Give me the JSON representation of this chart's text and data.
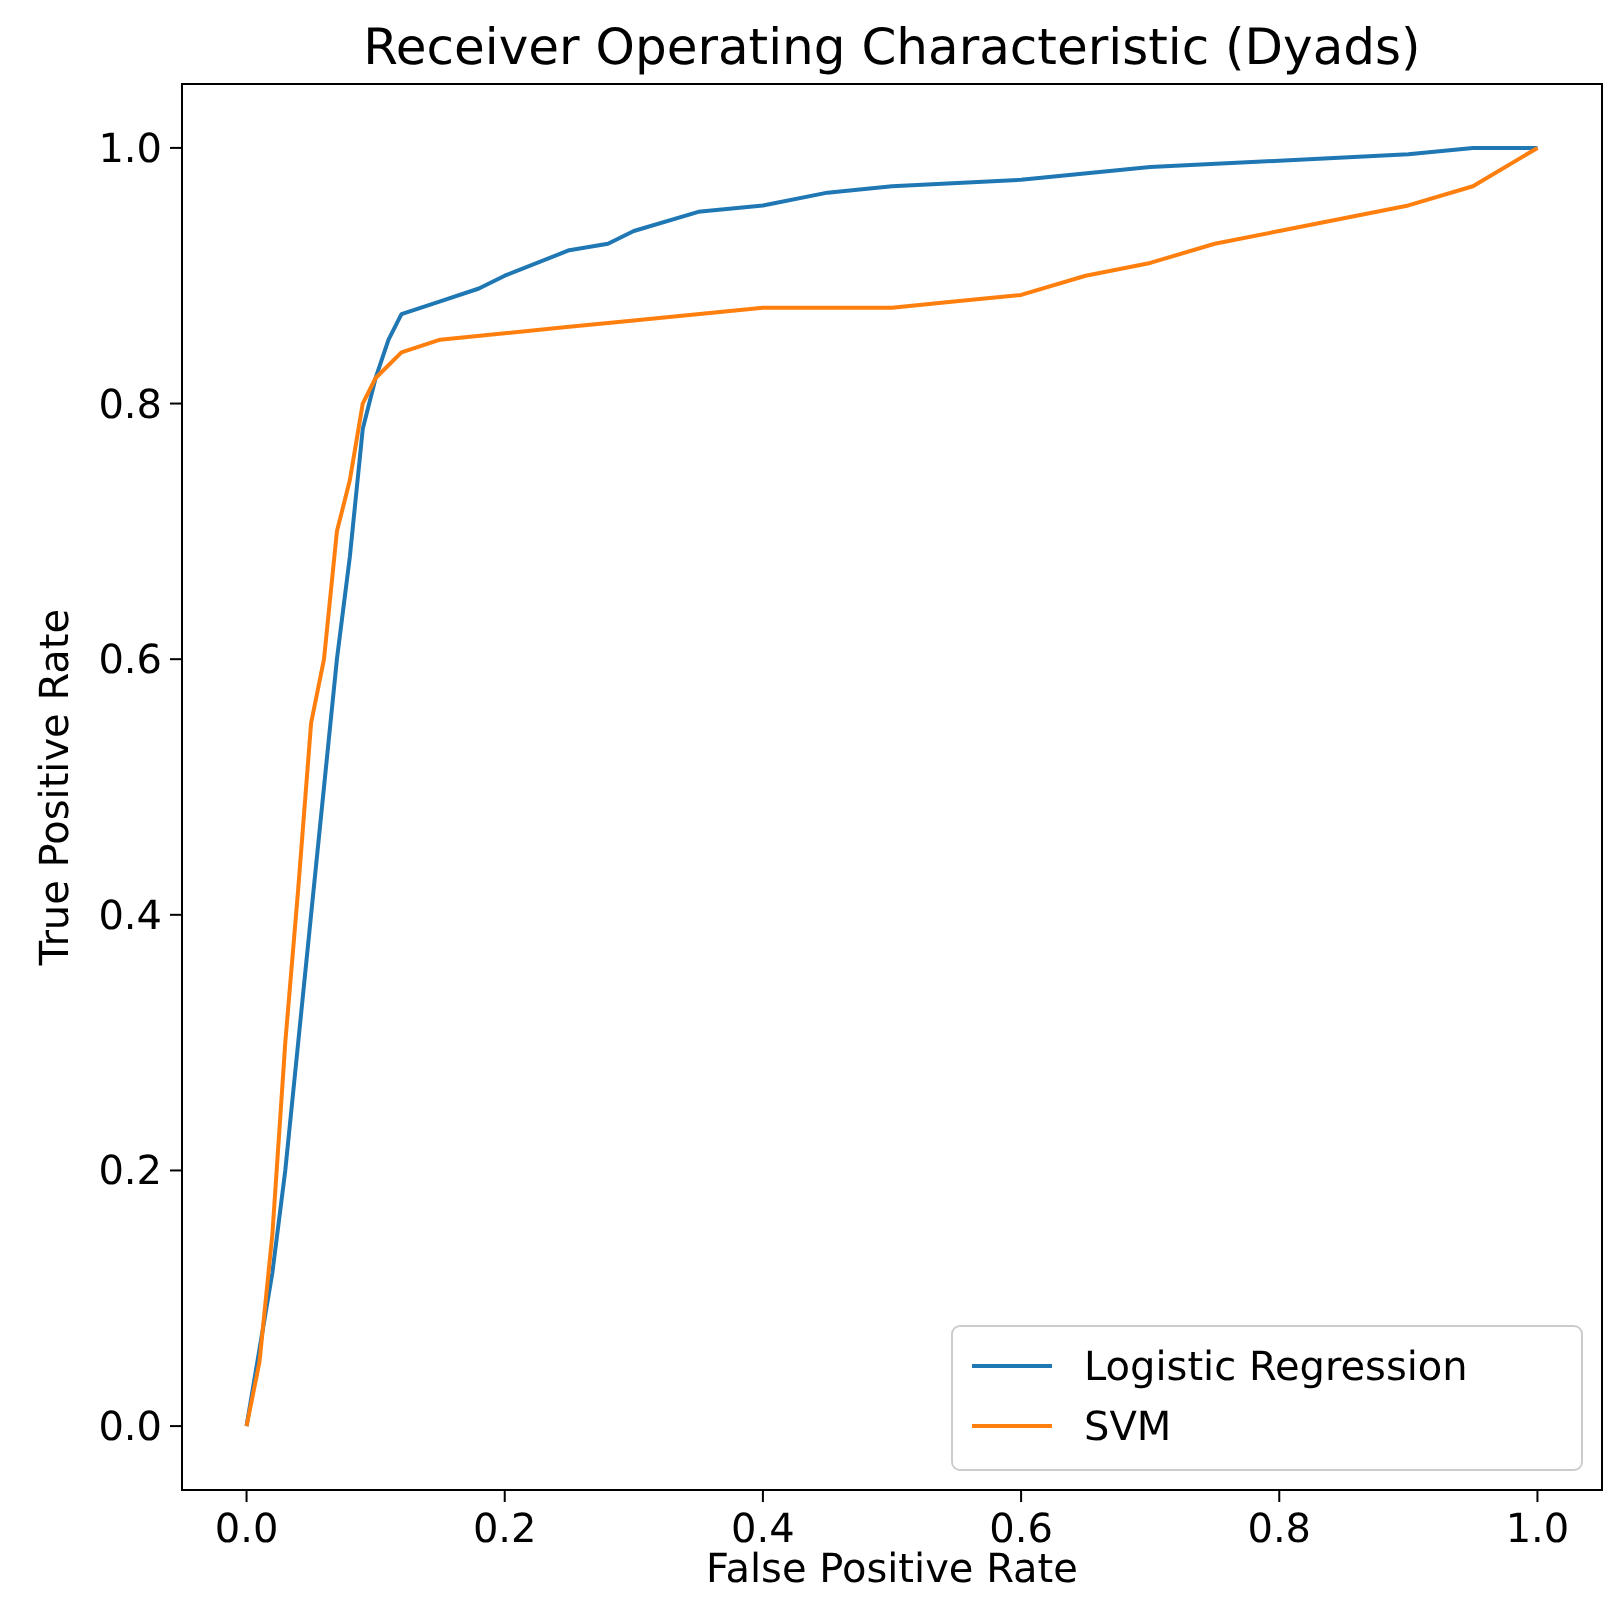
{
  "chart_data": {
    "type": "line",
    "title": "Receiver Operating Characteristic (Dyads)",
    "xlabel": "False Positive Rate",
    "ylabel": "True Positive Rate",
    "xlim": [
      -0.05,
      1.05
    ],
    "ylim": [
      -0.05,
      1.05
    ],
    "xticks": [
      {
        "value": 0,
        "label": "0.0"
      },
      {
        "value": 0.2,
        "label": "0.2"
      },
      {
        "value": 0.4,
        "label": "0.4"
      },
      {
        "value": 0.6,
        "label": "0.6"
      },
      {
        "value": 0.8,
        "label": "0.8"
      },
      {
        "value": 1,
        "label": "1.0"
      }
    ],
    "yticks": [
      {
        "value": 0,
        "label": "0.0"
      },
      {
        "value": 0.2,
        "label": "0.2"
      },
      {
        "value": 0.4,
        "label": "0.4"
      },
      {
        "value": 0.6,
        "label": "0.6"
      },
      {
        "value": 0.8,
        "label": "0.8"
      },
      {
        "value": 1,
        "label": "1.0"
      }
    ],
    "grid": false,
    "legend": "bottom right",
    "line_style": "solid",
    "marker": "none",
    "series": [
      {
        "name": "Logistic Regression",
        "color": "#1f77b4",
        "x": [
          0,
          0.01,
          0.02,
          0.03,
          0.04,
          0.05,
          0.06,
          0.07,
          0.08,
          0.09,
          0.1,
          0.11,
          0.12,
          0.15,
          0.18,
          0.2,
          0.25,
          0.28,
          0.3,
          0.35,
          0.4,
          0.45,
          0.5,
          0.6,
          0.7,
          0.8,
          0.9,
          0.95,
          1
        ],
        "values": [
          0,
          0.06,
          0.12,
          0.2,
          0.3,
          0.4,
          0.5,
          0.6,
          0.68,
          0.78,
          0.82,
          0.85,
          0.87,
          0.88,
          0.89,
          0.9,
          0.92,
          0.925,
          0.935,
          0.95,
          0.955,
          0.965,
          0.97,
          0.975,
          0.985,
          0.99,
          0.995,
          1,
          1
        ]
      },
      {
        "name": "SVM",
        "color": "#ff7f0e",
        "x": [
          0,
          0.01,
          0.02,
          0.03,
          0.04,
          0.05,
          0.06,
          0.07,
          0.08,
          0.09,
          0.1,
          0.12,
          0.15,
          0.2,
          0.25,
          0.3,
          0.4,
          0.5,
          0.55,
          0.6,
          0.65,
          0.7,
          0.75,
          0.8,
          0.85,
          0.9,
          0.95,
          1
        ],
        "values": [
          0,
          0.05,
          0.15,
          0.3,
          0.42,
          0.55,
          0.6,
          0.7,
          0.74,
          0.8,
          0.82,
          0.84,
          0.85,
          0.855,
          0.86,
          0.865,
          0.875,
          0.875,
          0.88,
          0.885,
          0.9,
          0.91,
          0.925,
          0.935,
          0.945,
          0.955,
          0.97,
          1
        ]
      }
    ]
  }
}
